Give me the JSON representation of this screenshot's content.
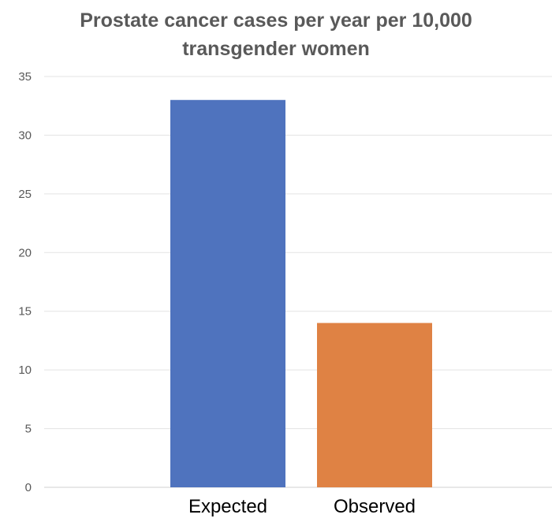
{
  "chart_data": {
    "type": "bar",
    "title_lines": [
      "Prostate cancer cases per year per 10,000",
      "transgender women"
    ],
    "categories": [
      "Expected",
      "Observed"
    ],
    "values": [
      33,
      14
    ],
    "colors": [
      "#4f73be",
      "#df8244"
    ],
    "ylim": [
      0,
      35
    ],
    "yticks": [
      0,
      5,
      10,
      15,
      20,
      25,
      30,
      35
    ],
    "grid": true,
    "legend": "none"
  }
}
